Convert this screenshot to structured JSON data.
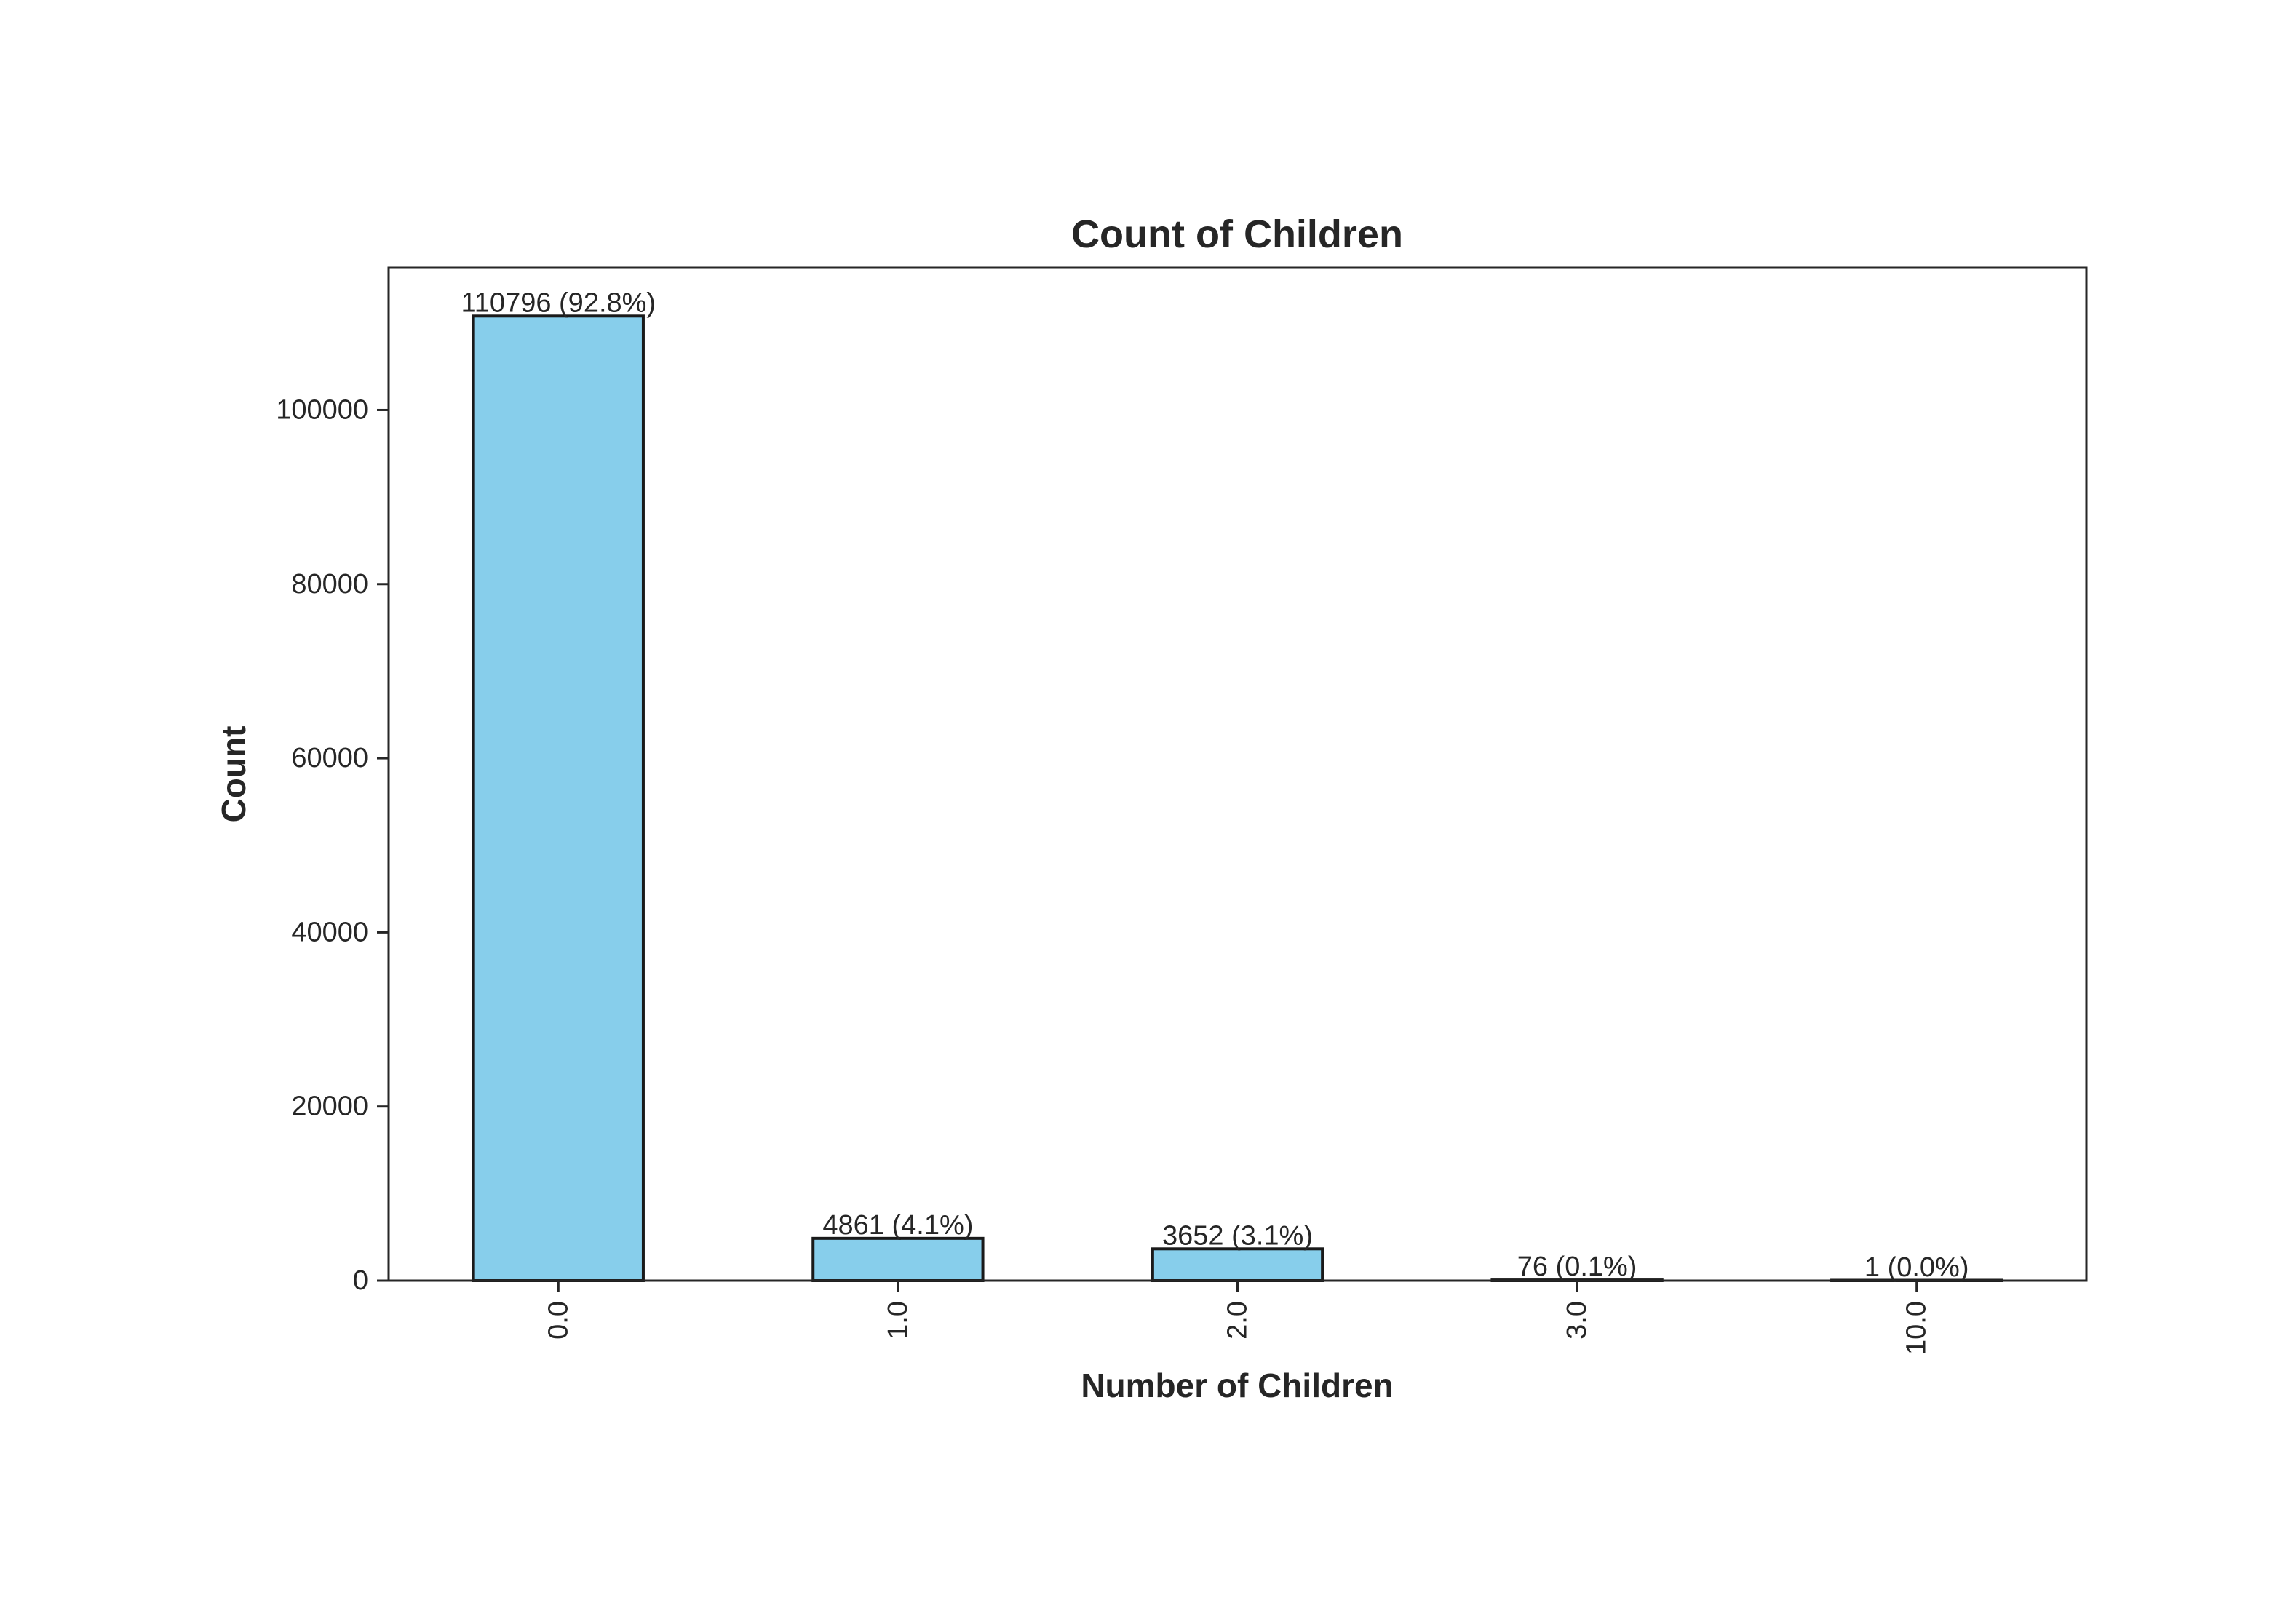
{
  "chart_data": {
    "type": "bar",
    "title": "Count of Children",
    "xlabel": "Number of Children",
    "ylabel": "Count",
    "categories": [
      "0.0",
      "1.0",
      "2.0",
      "3.0",
      "10.0"
    ],
    "values": [
      110796,
      4861,
      3652,
      76,
      1
    ],
    "data_labels": [
      "110796 (92.8%)",
      "4861 (4.1%)",
      "3652 (3.1%)",
      "76 (0.1%)",
      "1 (0.0%)"
    ],
    "yticks": [
      0,
      20000,
      40000,
      60000,
      80000,
      100000
    ],
    "ytick_labels": [
      "0",
      "20000",
      "40000",
      "60000",
      "80000",
      "100000"
    ],
    "ylim": [
      0,
      116336
    ],
    "grid": false,
    "colors": {
      "bar_fill": "#87ceeb",
      "bar_edge": "#1a1a1a",
      "axis": "#262626",
      "text": "#262626"
    }
  }
}
